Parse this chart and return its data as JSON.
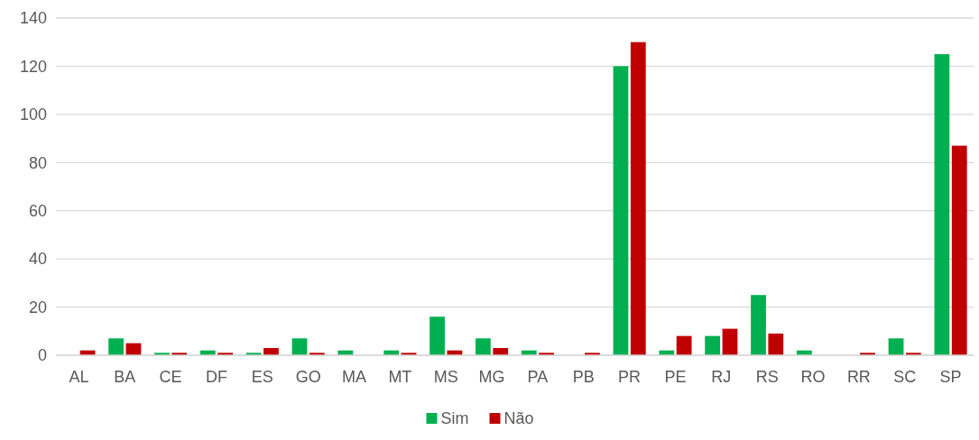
{
  "chart_data": {
    "type": "bar",
    "categories": [
      "AL",
      "BA",
      "CE",
      "DF",
      "ES",
      "GO",
      "MA",
      "MT",
      "MS",
      "MG",
      "PA",
      "PB",
      "PR",
      "PE",
      "RJ",
      "RS",
      "RO",
      "RR",
      "SC",
      "SP"
    ],
    "series": [
      {
        "name": "Sim",
        "color": "#00b050",
        "values": [
          0,
          7,
          1,
          2,
          1,
          7,
          2,
          2,
          16,
          7,
          2,
          0,
          120,
          2,
          8,
          25,
          2,
          0,
          7,
          125
        ]
      },
      {
        "name": "Não",
        "color": "#c00000",
        "values": [
          2,
          5,
          1,
          1,
          3,
          1,
          0,
          1,
          2,
          3,
          1,
          1,
          130,
          8,
          11,
          9,
          0,
          1,
          1,
          87
        ]
      }
    ],
    "ylim": [
      0,
      140
    ],
    "yticks": [
      0,
      20,
      40,
      60,
      80,
      100,
      120,
      140
    ],
    "grid": "y",
    "legend": "bottom"
  }
}
